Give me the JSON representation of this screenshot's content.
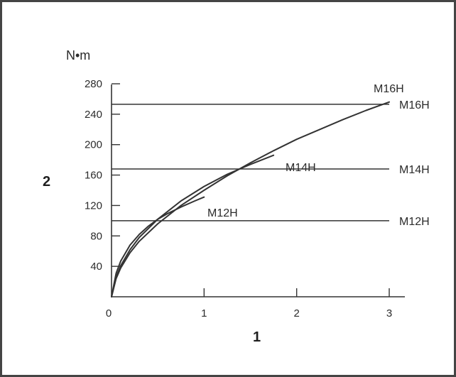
{
  "chart_data": {
    "type": "line",
    "unit": "N•m",
    "xlabel": "1",
    "ylabel": "2",
    "xlim": [
      0,
      3
    ],
    "ylim": [
      0,
      280
    ],
    "x_ticks": [
      "0",
      "1",
      "2",
      "3"
    ],
    "y_ticks": [
      "40",
      "80",
      "120",
      "160",
      "200",
      "240",
      "280"
    ],
    "grid": false,
    "colors": {
      "line": "#333333",
      "axis": "#333333",
      "frame": "#444444"
    },
    "curves": [
      {
        "name": "M16H",
        "x": [
          0,
          0.05,
          0.1,
          0.2,
          0.3,
          0.5,
          0.75,
          1.0,
          1.25,
          1.5,
          1.75,
          2.0,
          2.25,
          2.5,
          2.75,
          3.0
        ],
        "y": [
          0,
          24,
          38,
          58,
          73,
          96,
          120,
          140,
          159,
          176,
          192,
          207,
          220,
          233,
          245,
          256
        ]
      },
      {
        "name": "M14H",
        "x": [
          0,
          0.05,
          0.1,
          0.2,
          0.3,
          0.5,
          0.75,
          1.0,
          1.25,
          1.5,
          1.75
        ],
        "y": [
          0,
          26,
          41,
          62,
          78,
          102,
          126,
          145,
          161,
          174,
          186
        ]
      },
      {
        "name": "M12H",
        "x": [
          0,
          0.05,
          0.1,
          0.2,
          0.3,
          0.4,
          0.5,
          0.6,
          0.75,
          0.9,
          1.0
        ],
        "y": [
          0,
          31,
          47,
          68,
          82,
          93,
          102,
          109,
          118,
          126,
          131
        ]
      }
    ],
    "limits": [
      {
        "name": "M16H",
        "value": 253
      },
      {
        "name": "M14H",
        "value": 168
      },
      {
        "name": "M12H",
        "value": 100
      }
    ]
  }
}
